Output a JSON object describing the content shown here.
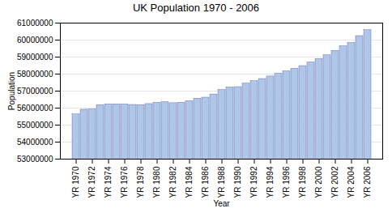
{
  "chart_data": {
    "type": "bar",
    "title": "UK Population 1970 - 2006",
    "xlabel": "Year",
    "ylabel": "Population",
    "categories": [
      "YR 1970",
      null,
      "YR 1972",
      null,
      "YR 1974",
      null,
      "YR 1976",
      null,
      "YR 1978",
      null,
      "YR 1980",
      null,
      "YR 1982",
      null,
      "YR 1984",
      null,
      "YR 1986",
      null,
      "YR 1988",
      null,
      "YR 1990",
      null,
      "YR 1992",
      null,
      "YR 1994",
      null,
      "YR 1996",
      null,
      "YR 1998",
      null,
      "YR 2000",
      null,
      "YR 2002",
      null,
      "YR 2004",
      null,
      "YR 2006"
    ],
    "values": [
      55632000,
      55907000,
      55927000,
      56179000,
      56224000,
      56226000,
      56216000,
      56190000,
      56178000,
      56240000,
      56314000,
      56352000,
      56291000,
      56318000,
      56413000,
      56554000,
      56618000,
      56804000,
      57065000,
      57218000,
      57237000,
      57439000,
      57585000,
      57714000,
      57862000,
      58025000,
      58164000,
      58314000,
      58475000,
      58684000,
      58886000,
      59113000,
      59370000,
      59636000,
      59834000,
      60238000,
      60587000
    ],
    "color": "#aec6e8",
    "ylim": [
      53000000,
      61000000
    ],
    "yticks": [
      53000000,
      54000000,
      55000000,
      56000000,
      57000000,
      58000000,
      59000000,
      60000000,
      61000000
    ],
    "grid": true
  }
}
